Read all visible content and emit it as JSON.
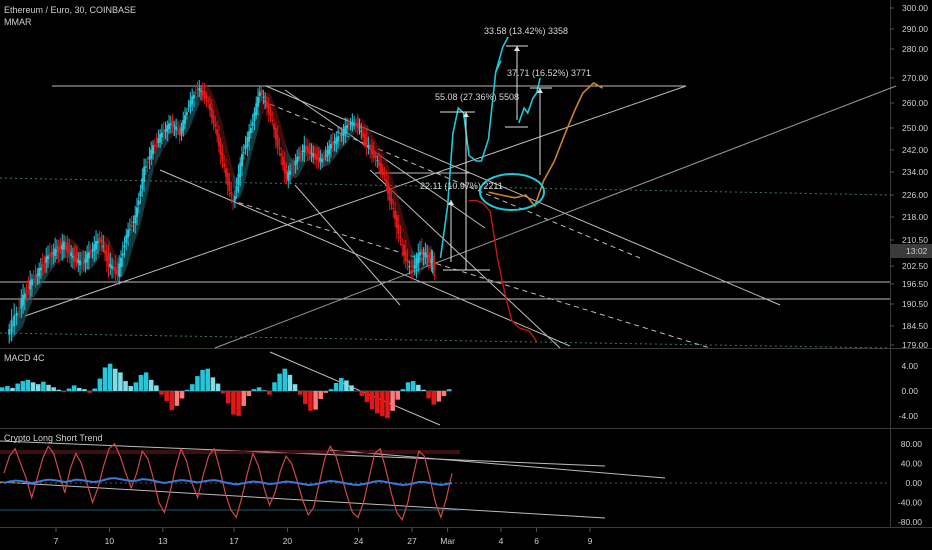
{
  "header": {
    "symbol": "Ethereum / Euro, 30, COINBASE",
    "indicator": "MMAR",
    "macd_title": "MACD 4C",
    "trend_title": "Crypto Long Short Trend"
  },
  "colors": {
    "background": "#000000",
    "bull": "#26c6da",
    "bear": "#e01818",
    "projection_cyan": "#1ec8d8",
    "projection_red": "#d41414",
    "projection_orange": "#c8842c",
    "lines": "#bdbdbd"
  },
  "chart_data": [
    {
      "type": "line",
      "panel": "price",
      "title": "Ethereum / Euro, 30, COINBASE",
      "y_ticks": [
        "300.00",
        "290.00",
        "280.00",
        "270.00",
        "260.00",
        "250.00",
        "242.00",
        "234.00",
        "226.00",
        "218.00",
        "210.50",
        "202.50",
        "196.50",
        "190.50",
        "184.50",
        "179.00"
      ],
      "current_price_label": "13:02",
      "x_ticks": [
        "7",
        "10",
        "13",
        "17",
        "20",
        "24",
        "27",
        "Mar",
        "4",
        "6",
        "9"
      ],
      "price_path": [
        [
          4.3,
          182
        ],
        [
          5.0,
          190
        ],
        [
          5.5,
          196
        ],
        [
          6.0,
          200
        ],
        [
          6.5,
          205
        ],
        [
          7.0,
          207
        ],
        [
          7.5,
          209
        ],
        [
          8.0,
          205
        ],
        [
          8.5,
          203
        ],
        [
          9.0,
          207
        ],
        [
          9.5,
          211
        ],
        [
          10.0,
          203
        ],
        [
          10.5,
          200
        ],
        [
          11.0,
          212
        ],
        [
          11.5,
          218
        ],
        [
          12.0,
          235
        ],
        [
          12.5,
          243
        ],
        [
          13.0,
          248
        ],
        [
          13.5,
          252
        ],
        [
          14.0,
          248
        ],
        [
          14.5,
          259
        ],
        [
          15.0,
          266
        ],
        [
          15.5,
          262
        ],
        [
          16.0,
          250
        ],
        [
          16.5,
          235
        ],
        [
          17.0,
          223
        ],
        [
          17.5,
          240
        ],
        [
          18.0,
          250
        ],
        [
          18.5,
          265
        ],
        [
          19.0,
          257
        ],
        [
          19.5,
          244
        ],
        [
          20.0,
          232
        ],
        [
          20.5,
          238
        ],
        [
          21.0,
          243
        ],
        [
          21.5,
          240
        ],
        [
          22.0,
          238
        ],
        [
          22.5,
          244
        ],
        [
          23.0,
          247
        ],
        [
          23.5,
          252
        ],
        [
          24.0,
          251
        ],
        [
          24.5,
          244
        ],
        [
          25.0,
          239
        ],
        [
          25.5,
          232
        ],
        [
          26.0,
          220
        ],
        [
          26.5,
          208
        ],
        [
          27.0,
          200
        ],
        [
          27.5,
          207
        ],
        [
          28.0,
          205
        ],
        [
          28.3,
          202
        ]
      ],
      "projection_cyan": [
        [
          28.6,
          205
        ],
        [
          29.0,
          222
        ],
        [
          29.3,
          248
        ],
        [
          29.6,
          258
        ],
        [
          29.9,
          256
        ],
        [
          30.2,
          240
        ],
        [
          30.6,
          238
        ],
        [
          30.9,
          238
        ],
        [
          31.3,
          246
        ],
        [
          31.7,
          272
        ],
        [
          32.0,
          276
        ]
      ],
      "projection_cyan_peak": [
        [
          31.7,
          272
        ],
        [
          32.1,
          281
        ],
        [
          32.4,
          286
        ]
      ],
      "projection_cyan_late": [
        [
          33.0,
          252
        ],
        [
          33.3,
          258
        ],
        [
          33.5,
          256
        ],
        [
          33.8,
          262
        ],
        [
          34.0,
          264
        ],
        [
          34.2,
          270
        ]
      ],
      "projection_red": [
        [
          30.2,
          224
        ],
        [
          30.6,
          224
        ],
        [
          31.0,
          223
        ],
        [
          31.4,
          220
        ],
        [
          31.8,
          205
        ],
        [
          32.2,
          194
        ],
        [
          32.6,
          186
        ],
        [
          33.0,
          184
        ],
        [
          33.6,
          183
        ],
        [
          34.0,
          180
        ]
      ],
      "projection_orange": [
        [
          31.3,
          227
        ],
        [
          32.0,
          226
        ],
        [
          32.8,
          225
        ],
        [
          33.4,
          226
        ],
        [
          33.9,
          222
        ],
        [
          34.4,
          231
        ],
        [
          35.0,
          238
        ],
        [
          35.6,
          248
        ],
        [
          36.2,
          258
        ],
        [
          36.6,
          264
        ],
        [
          37.2,
          268
        ],
        [
          37.7,
          266
        ]
      ],
      "annotations": [
        "33.58 (13.42%) 3358",
        "37.71 (16.52%) 3771",
        "55.08 (27.36%) 5508",
        "22.11 (10.97%) 2211"
      ]
    },
    {
      "type": "bar",
      "panel": "macd",
      "title": "MACD 4C",
      "y_ticks": [
        "4.00",
        "0.00",
        "-4.00"
      ],
      "values": [
        0.6,
        0.8,
        0.5,
        1.2,
        1.6,
        1.8,
        1.4,
        1.1,
        1.5,
        1.0,
        0.6,
        0.2,
        -0.2,
        0.4,
        0.9,
        0.5,
        0.3,
        -0.3,
        0.4,
        2.0,
        3.8,
        4.4,
        3.6,
        3.0,
        1.6,
        0.8,
        1.4,
        2.6,
        3.0,
        1.8,
        0.9,
        -0.6,
        -1.6,
        -3.1,
        -2.4,
        -1.2,
        0.2,
        1.1,
        2.4,
        3.4,
        3.6,
        2.2,
        1.2,
        -0.4,
        -2.0,
        -3.8,
        -4.0,
        -2.4,
        -0.8,
        0.3,
        0.6,
        0.1,
        -0.6,
        1.4,
        2.8,
        3.6,
        2.6,
        1.1,
        -0.6,
        -2.1,
        -3.2,
        -3.0,
        -1.3,
        -0.3,
        0.3,
        1.3,
        2.1,
        1.7,
        0.9,
        -0.1,
        -0.8,
        -1.8,
        -2.9,
        -3.6,
        -4.1,
        -4.4,
        -3.2,
        -1.4,
        0.3,
        1.4,
        1.6,
        1.0,
        0.2,
        -1.2,
        -2.2,
        -1.7,
        -0.8,
        0.3
      ]
    },
    {
      "type": "line",
      "panel": "trend",
      "title": "Crypto Long Short Trend",
      "y_ticks": [
        "80.00",
        "40.00",
        "0.00",
        "-40.00",
        "-80.00"
      ],
      "series": [
        {
          "values": [
            20,
            55,
            70,
            40,
            10,
            -30,
            10,
            50,
            75,
            60,
            20,
            -20,
            30,
            60,
            40,
            0,
            -40,
            -10,
            35,
            70,
            80,
            55,
            20,
            -10,
            20,
            65,
            50,
            10,
            -40,
            -60,
            -20,
            30,
            70,
            45,
            0,
            -30,
            15,
            55,
            70,
            30,
            -20,
            -55,
            -70,
            -30,
            20,
            60,
            35,
            -10,
            -45,
            -20,
            25,
            55,
            40,
            5,
            -35,
            -65,
            -50,
            0,
            50,
            75,
            55,
            15,
            -25,
            -60,
            -70,
            -40,
            10,
            60,
            70,
            30,
            -20,
            -60,
            -75,
            -40,
            15,
            65,
            55,
            10,
            -40,
            -70,
            -30,
            20
          ]
        },
        {
          "values": [
            0,
            3,
            5,
            4,
            2,
            0,
            2,
            5,
            7,
            6,
            4,
            2,
            4,
            7,
            6,
            4,
            2,
            3,
            6,
            9,
            10,
            8,
            6,
            4,
            5,
            8,
            7,
            5,
            2,
            0,
            2,
            4,
            6,
            5,
            3,
            1,
            3,
            5,
            6,
            4,
            1,
            -1,
            -3,
            -1,
            1,
            3,
            2,
            0,
            -2,
            -1,
            1,
            3,
            2,
            0,
            -2,
            -4,
            -3,
            -1,
            2,
            4,
            3,
            1,
            -1,
            -3,
            -4,
            -2,
            0,
            3,
            4,
            2,
            0,
            -2,
            -4,
            -3,
            -1,
            2,
            2,
            0,
            -2,
            -4,
            -2,
            0
          ]
        }
      ]
    }
  ]
}
